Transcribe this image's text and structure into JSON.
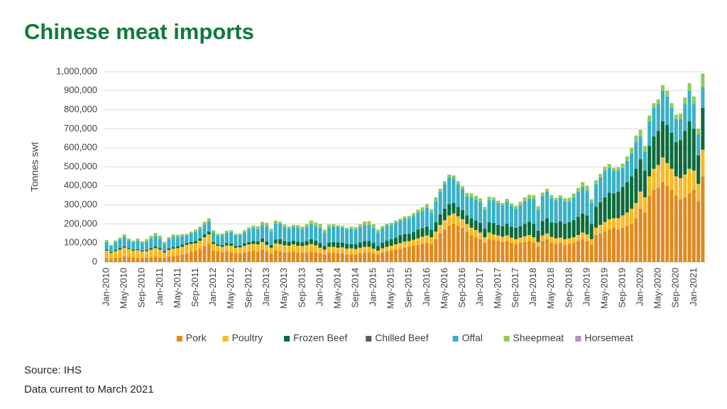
{
  "chart_data": {
    "type": "stacked-bar",
    "title": "Chinese meat imports",
    "y_label": "Tonnes swt",
    "notes": [
      "Source: IHS",
      "Data current to March 2021"
    ],
    "categories": [
      "Jan-2010",
      null,
      null,
      null,
      "May-2010",
      null,
      null,
      null,
      "Sep-2010",
      null,
      null,
      null,
      "Jan-2011",
      null,
      null,
      null,
      "May-2011",
      null,
      null,
      null,
      "Sep-2011",
      null,
      null,
      null,
      "Jan-2012",
      null,
      null,
      null,
      "May-2012",
      null,
      null,
      null,
      "Sep-2012",
      null,
      null,
      null,
      "Jan-2013",
      null,
      null,
      null,
      "May-2013",
      null,
      null,
      null,
      "Sep-2013",
      null,
      null,
      null,
      "Jan-2014",
      null,
      null,
      null,
      "May-2014",
      null,
      null,
      null,
      "Sep-2014",
      null,
      null,
      null,
      "Jan-2015",
      null,
      null,
      null,
      "May-2015",
      null,
      null,
      null,
      "Sep-2015",
      null,
      null,
      null,
      "Jan-2016",
      null,
      null,
      null,
      "May-2016",
      null,
      null,
      null,
      "Sep-2016",
      null,
      null,
      null,
      "Jan-2017",
      null,
      null,
      null,
      "May-2017",
      null,
      null,
      null,
      "Sep-2017",
      null,
      null,
      null,
      "Jan-2018",
      null,
      null,
      null,
      "May-2018",
      null,
      null,
      null,
      "Sep-2018",
      null,
      null,
      null,
      "Jan-2019",
      null,
      null,
      null,
      "May-2019",
      null,
      null,
      null,
      "Sep-2019",
      null,
      null,
      null,
      "Jan-2020",
      null,
      null,
      null,
      "May-2020",
      null,
      null,
      null,
      "Sep-2020",
      null,
      null,
      null,
      "Jan-2021",
      null,
      null
    ],
    "series": [
      {
        "name": "Pork",
        "color": "#e08a1e",
        "values": [
          20000,
          18000,
          22000,
          25000,
          30000,
          28000,
          25000,
          22000,
          20000,
          22000,
          25000,
          28000,
          25000,
          20000,
          28000,
          30000,
          35000,
          40000,
          45000,
          55000,
          60000,
          70000,
          85000,
          95000,
          60000,
          55000,
          50000,
          55000,
          50000,
          45000,
          45000,
          50000,
          55000,
          60000,
          55000,
          65000,
          55000,
          45000,
          60000,
          55000,
          50000,
          50000,
          55000,
          50000,
          48000,
          50000,
          55000,
          50000,
          45000,
          40000,
          50000,
          48000,
          45000,
          45000,
          40000,
          42000,
          40000,
          45000,
          48000,
          50000,
          45000,
          40000,
          50000,
          55000,
          60000,
          65000,
          70000,
          75000,
          80000,
          85000,
          90000,
          95000,
          100000,
          95000,
          120000,
          150000,
          170000,
          190000,
          200000,
          190000,
          180000,
          160000,
          140000,
          130000,
          120000,
          100000,
          120000,
          115000,
          110000,
          105000,
          110000,
          100000,
          95000,
          100000,
          105000,
          110000,
          100000,
          80000,
          110000,
          120000,
          100000,
          95000,
          100000,
          90000,
          95000,
          100000,
          110000,
          120000,
          110000,
          90000,
          140000,
          150000,
          160000,
          170000,
          180000,
          170000,
          180000,
          190000,
          200000,
          230000,
          280000,
          260000,
          350000,
          380000,
          390000,
          420000,
          400000,
          380000,
          350000,
          330000,
          340000,
          360000,
          380000,
          320000,
          450000
        ]
      },
      {
        "name": "Poultry",
        "color": "#fbb821",
        "values": [
          40000,
          30000,
          35000,
          40000,
          45000,
          40000,
          35000,
          40000,
          35000,
          35000,
          40000,
          45000,
          40000,
          30000,
          35000,
          40000,
          38000,
          40000,
          45000,
          40000,
          38000,
          42000,
          45000,
          50000,
          35000,
          30000,
          30000,
          32000,
          35000,
          30000,
          32000,
          35000,
          38000,
          35000,
          38000,
          40000,
          35000,
          30000,
          38000,
          40000,
          38000,
          36000,
          38000,
          35000,
          36000,
          38000,
          40000,
          38000,
          30000,
          25000,
          30000,
          32000,
          30000,
          32000,
          30000,
          30000,
          28000,
          30000,
          32000,
          30000,
          25000,
          20000,
          22000,
          25000,
          25000,
          28000,
          30000,
          32000,
          30000,
          32000,
          35000,
          38000,
          40000,
          35000,
          40000,
          45000,
          50000,
          55000,
          55000,
          50000,
          45000,
          40000,
          40000,
          38000,
          35000,
          30000,
          35000,
          30000,
          30000,
          28000,
          30000,
          28000,
          25000,
          28000,
          30000,
          32000,
          30000,
          25000,
          30000,
          30000,
          32000,
          30000,
          28000,
          30000,
          30000,
          30000,
          32000,
          35000,
          35000,
          30000,
          40000,
          45000,
          50000,
          55000,
          50000,
          60000,
          65000,
          70000,
          80000,
          80000,
          90000,
          80000,
          100000,
          110000,
          120000,
          130000,
          120000,
          110000,
          100000,
          110000,
          120000,
          130000,
          100000,
          90000,
          140000
        ]
      },
      {
        "name": "Frozen Beef",
        "color": "#0b6b3a",
        "values": [
          5000,
          5000,
          6000,
          8000,
          8000,
          6000,
          5000,
          6000,
          5000,
          6000,
          8000,
          10000,
          8000,
          6000,
          8000,
          8000,
          10000,
          12000,
          10000,
          10000,
          12000,
          12000,
          15000,
          15000,
          10000,
          8000,
          10000,
          12000,
          12000,
          10000,
          10000,
          12000,
          12000,
          15000,
          15000,
          18000,
          18000,
          15000,
          20000,
          25000,
          22000,
          20000,
          20000,
          22000,
          20000,
          22000,
          25000,
          25000,
          25000,
          20000,
          22000,
          25000,
          28000,
          25000,
          25000,
          22000,
          25000,
          28000,
          30000,
          30000,
          30000,
          25000,
          30000,
          32000,
          35000,
          35000,
          40000,
          40000,
          38000,
          40000,
          45000,
          45000,
          45000,
          40000,
          50000,
          55000,
          60000,
          60000,
          55000,
          50000,
          48000,
          45000,
          50000,
          50000,
          50000,
          45000,
          55000,
          60000,
          55000,
          55000,
          60000,
          58000,
          60000,
          60000,
          65000,
          70000,
          70000,
          60000,
          75000,
          80000,
          75000,
          80000,
          85000,
          80000,
          85000,
          90000,
          95000,
          100000,
          100000,
          80000,
          110000,
          120000,
          130000,
          140000,
          130000,
          140000,
          150000,
          160000,
          170000,
          180000,
          170000,
          140000,
          160000,
          170000,
          180000,
          190000,
          200000,
          190000,
          180000,
          200000,
          230000,
          250000,
          220000,
          150000,
          220000
        ]
      },
      {
        "name": "Chilled Beef",
        "color": "#595959",
        "values": [
          0,
          0,
          0,
          0,
          0,
          0,
          0,
          0,
          0,
          0,
          0,
          0,
          0,
          0,
          0,
          0,
          0,
          0,
          0,
          0,
          0,
          0,
          0,
          0,
          0,
          0,
          0,
          0,
          0,
          0,
          0,
          0,
          0,
          0,
          0,
          0,
          0,
          0,
          0,
          0,
          0,
          0,
          0,
          0,
          0,
          0,
          0,
          0,
          0,
          0,
          0,
          0,
          0,
          0,
          0,
          0,
          0,
          0,
          0,
          0,
          0,
          0,
          0,
          0,
          0,
          0,
          0,
          0,
          0,
          0,
          0,
          0,
          0,
          0,
          0,
          0,
          0,
          0,
          0,
          0,
          0,
          0,
          0,
          0,
          0,
          0,
          0,
          0,
          0,
          0,
          0,
          0,
          0,
          0,
          0,
          0,
          0,
          0,
          0,
          0,
          0,
          0,
          0,
          0,
          0,
          0,
          0,
          0,
          0,
          0,
          0,
          0,
          0,
          0,
          0,
          0,
          0,
          0,
          0,
          0,
          0,
          0,
          0,
          0,
          0,
          0,
          0,
          0,
          0,
          0,
          0,
          0,
          0,
          0,
          0
        ]
      },
      {
        "name": "Offal",
        "color": "#3ab0c8",
        "values": [
          40000,
          30000,
          40000,
          45000,
          50000,
          40000,
          40000,
          45000,
          40000,
          45000,
          50000,
          55000,
          50000,
          40000,
          50000,
          55000,
          50000,
          45000,
          40000,
          45000,
          48000,
          50000,
          52000,
          55000,
          50000,
          45000,
          50000,
          55000,
          60000,
          55000,
          55000,
          60000,
          65000,
          70000,
          65000,
          70000,
          80000,
          70000,
          85000,
          80000,
          75000,
          70000,
          72000,
          75000,
          70000,
          75000,
          80000,
          75000,
          80000,
          70000,
          80000,
          82000,
          80000,
          78000,
          75000,
          80000,
          78000,
          80000,
          85000,
          85000,
          80000,
          70000,
          75000,
          80000,
          75000,
          80000,
          78000,
          80000,
          82000,
          85000,
          90000,
          90000,
          100000,
          90000,
          110000,
          120000,
          130000,
          140000,
          130000,
          120000,
          110000,
          100000,
          110000,
          110000,
          110000,
          100000,
          115000,
          120000,
          115000,
          110000,
          120000,
          110000,
          100000,
          110000,
          120000,
          120000,
          130000,
          110000,
          130000,
          140000,
          130000,
          120000,
          125000,
          120000,
          110000,
          120000,
          130000,
          140000,
          130000,
          110000,
          120000,
          130000,
          140000,
          130000,
          120000,
          110000,
          100000,
          110000,
          120000,
          140000,
          120000,
          100000,
          130000,
          150000,
          140000,
          160000,
          150000,
          130000,
          120000,
          110000,
          140000,
          160000,
          130000,
          110000,
          110000
        ]
      },
      {
        "name": "Sheepmeat",
        "color": "#8dcc5a",
        "values": [
          10000,
          8000,
          10000,
          10000,
          12000,
          10000,
          8000,
          10000,
          10000,
          12000,
          15000,
          15000,
          15000,
          10000,
          10000,
          12000,
          10000,
          10000,
          8000,
          10000,
          12000,
          12000,
          15000,
          15000,
          12000,
          10000,
          10000,
          10000,
          10000,
          8000,
          8000,
          10000,
          12000,
          12000,
          15000,
          18000,
          18000,
          15000,
          15000,
          12000,
          12000,
          10000,
          10000,
          12000,
          12000,
          15000,
          18000,
          20000,
          20000,
          15000,
          15000,
          12000,
          10000,
          10000,
          10000,
          12000,
          12000,
          15000,
          18000,
          20000,
          18000,
          15000,
          12000,
          10000,
          10000,
          10000,
          10000,
          12000,
          12000,
          15000,
          15000,
          20000,
          20000,
          18000,
          20000,
          15000,
          15000,
          15000,
          15000,
          15000,
          15000,
          18000,
          20000,
          20000,
          20000,
          15000,
          18000,
          15000,
          12000,
          12000,
          12000,
          12000,
          15000,
          18000,
          20000,
          22000,
          22000,
          18000,
          20000,
          15000,
          15000,
          12000,
          12000,
          15000,
          18000,
          20000,
          22000,
          25000,
          25000,
          20000,
          20000,
          18000,
          20000,
          20000,
          15000,
          18000,
          22000,
          25000,
          30000,
          35000,
          35000,
          30000,
          30000,
          25000,
          25000,
          30000,
          30000,
          25000,
          25000,
          30000,
          35000,
          40000,
          40000,
          30000,
          70000
        ]
      },
      {
        "name": "Horsemeat",
        "color": "#b48ec0",
        "values": [
          0,
          0,
          0,
          0,
          0,
          0,
          0,
          0,
          0,
          0,
          0,
          0,
          0,
          0,
          0,
          0,
          0,
          0,
          0,
          0,
          0,
          0,
          0,
          0,
          0,
          0,
          0,
          0,
          0,
          0,
          0,
          0,
          0,
          0,
          0,
          0,
          0,
          0,
          0,
          0,
          0,
          0,
          0,
          0,
          0,
          0,
          0,
          0,
          0,
          0,
          0,
          0,
          0,
          0,
          0,
          0,
          0,
          0,
          0,
          0,
          0,
          0,
          0,
          0,
          0,
          0,
          0,
          0,
          0,
          0,
          0,
          0,
          0,
          0,
          0,
          0,
          0,
          0,
          0,
          0,
          0,
          0,
          0,
          0,
          0,
          0,
          0,
          0,
          0,
          0,
          0,
          0,
          0,
          0,
          0,
          0,
          0,
          0,
          0,
          0,
          0,
          0,
          0,
          0,
          0,
          0,
          0,
          0,
          0,
          0,
          0,
          0,
          0,
          0,
          0,
          0,
          0,
          0,
          0,
          0,
          0,
          0,
          0,
          0,
          0,
          0,
          0,
          0,
          0,
          0,
          0,
          0,
          0,
          0,
          0
        ]
      }
    ],
    "ylim": [
      0,
      1000000
    ],
    "yticks": [
      0,
      {
        "value": 100000,
        "label": "100,000"
      },
      {
        "value": 200000,
        "label": "200,000"
      },
      {
        "value": 300000,
        "label": "300,000"
      },
      {
        "value": 400000,
        "label": "400,000"
      },
      {
        "value": 500000,
        "label": "500,000"
      },
      {
        "value": 600000,
        "label": "600,000"
      },
      {
        "value": 700000,
        "label": "700,000"
      },
      {
        "value": 800000,
        "label": "800,000"
      },
      {
        "value": 900000,
        "label": "900,000"
      },
      {
        "value": 1000000,
        "label": "1,000,000"
      }
    ],
    "grid": true,
    "legend": "bottom"
  }
}
